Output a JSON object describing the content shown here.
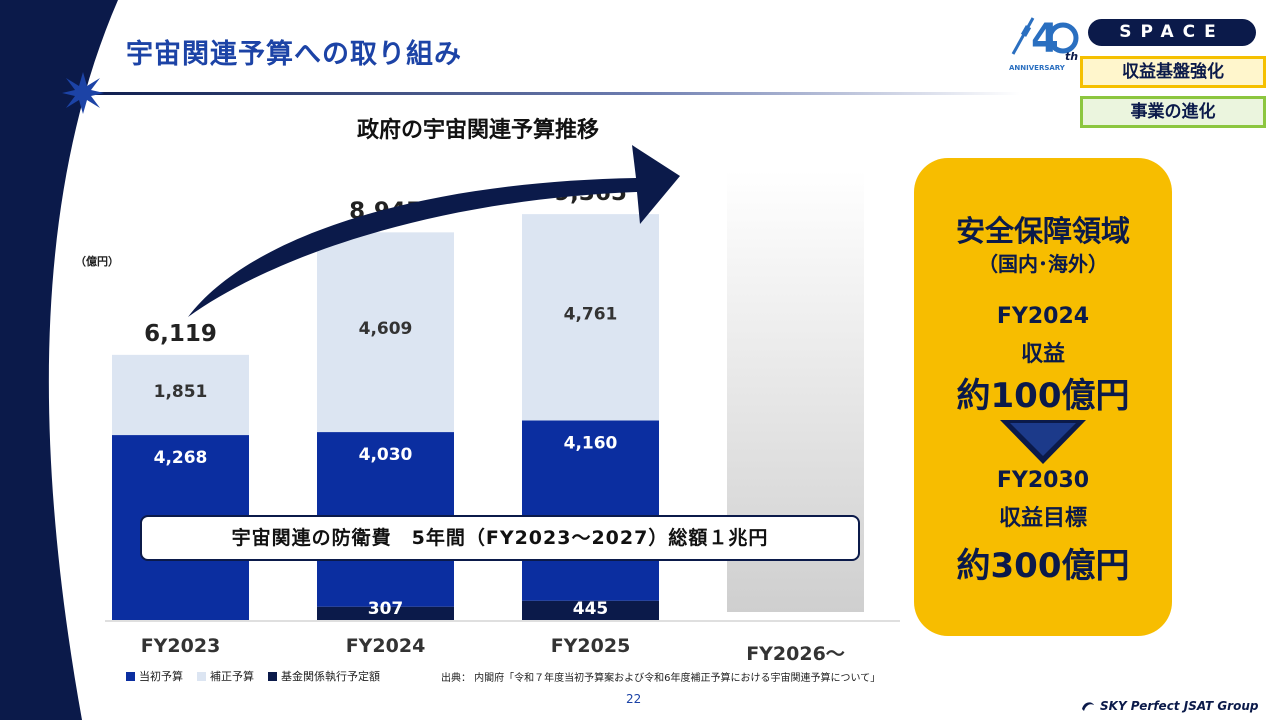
{
  "header": {
    "title": "宇宙関連予算への取り組み",
    "anniversary_number": "4",
    "anniversary_suffix": "th",
    "anniversary_label": "ANNIVERSARY",
    "space_tag": "SPACE",
    "tag_yellow": "収益基盤強化",
    "tag_green": "事業の進化"
  },
  "chart_data": {
    "type": "bar",
    "stacked": true,
    "title": "政府の宇宙関連予算推移",
    "unit_label": "（億円）",
    "categories": [
      "FY2023",
      "FY2024",
      "FY2025",
      "FY2026～"
    ],
    "series": [
      {
        "name": "当初予算",
        "values": [
          4268,
          4030,
          4160,
          null
        ],
        "color": "#0b2ea0"
      },
      {
        "name": "補正予算",
        "values": [
          1851,
          4609,
          4761,
          null
        ],
        "color": "#dce5f2"
      },
      {
        "name": "基金関係執行予定額",
        "values": [
          0,
          307,
          445,
          null
        ],
        "color": "#0b1a4a"
      }
    ],
    "totals": [
      6119,
      8945,
      9365,
      null
    ],
    "total_labels": [
      "6,119",
      "8,945",
      "9,365",
      ""
    ],
    "value_labels": {
      "initial": [
        "4,268",
        "4,030",
        "4,160"
      ],
      "supplementary": [
        "1,851",
        "4,609",
        "4,761"
      ],
      "fund": [
        "",
        "307",
        "445"
      ]
    },
    "ylim": [
      0,
      10500
    ],
    "grid": false,
    "legend_position": "bottom-left"
  },
  "defense_note": "宇宙関連の防衛費　5年間（FY2023～2027）総額１兆円",
  "panel": {
    "line1": "安全保障領域",
    "line2": "（国内･海外）",
    "line3": "FY2024",
    "line4": "収益",
    "line5": "約100億円",
    "line6": "FY2030",
    "line7": "収益目標",
    "line8": "約300億円"
  },
  "legend": [
    "当初予算",
    "補正予算",
    "基金関係執行予定額"
  ],
  "source": "出典： 内閣府「令和７年度当初予算案および令和6年度補正予算における宇宙関連予算について」",
  "page_number": "22",
  "brand": "SKY Perfect JSAT Group",
  "colors": {
    "navy": "#0b1a4a",
    "blue": "#0b2ea0",
    "light": "#dce5f2",
    "accent_yellow": "#f7bd00",
    "title_blue": "#1c43a6"
  }
}
